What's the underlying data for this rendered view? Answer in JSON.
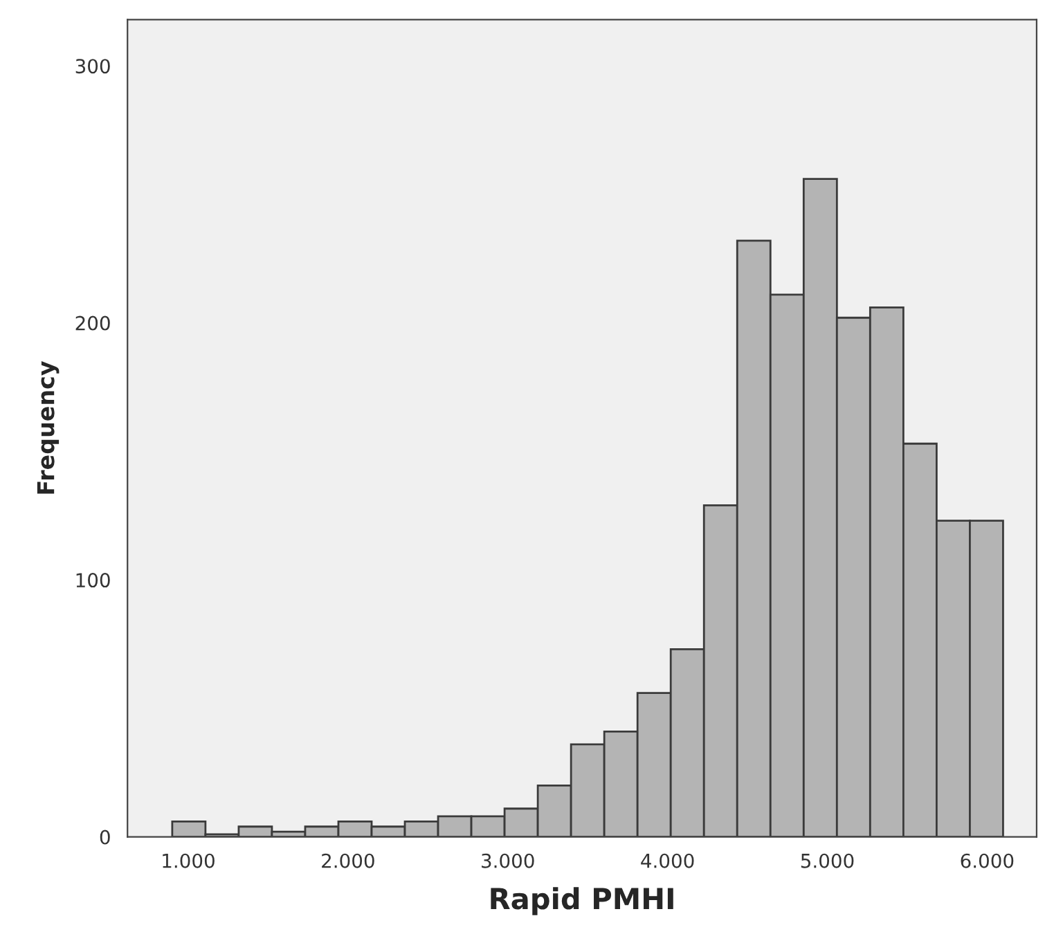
{
  "chart_data": {
    "type": "histogram",
    "xlabel": "Rapid PMHI",
    "ylabel": "Frequency",
    "bins": [
      900,
      1108,
      1316,
      1524,
      1732,
      1940,
      2148,
      2356,
      2564,
      2772,
      2980,
      3188,
      3396,
      3604,
      3812,
      4020,
      4228,
      4436,
      4644,
      4852,
      5060,
      5268,
      5476,
      5684,
      5892,
      6100
    ],
    "values": [
      6,
      1,
      4,
      2,
      4,
      6,
      4,
      6,
      8,
      8,
      11,
      20,
      36,
      41,
      56,
      73,
      129,
      232,
      211,
      256,
      202,
      206,
      153,
      123,
      123
    ],
    "color": "#b4b4b4",
    "xlim": [
      620,
      6310
    ],
    "xticks": [
      {
        "value": 1000,
        "label": "1.000"
      },
      {
        "value": 2000,
        "label": "2.000"
      },
      {
        "value": 3000,
        "label": "3.000"
      },
      {
        "value": 4000,
        "label": "4.000"
      },
      {
        "value": 5000,
        "label": "5.000"
      },
      {
        "value": 6000,
        "label": "6.000"
      }
    ],
    "ylim": [
      0,
      318
    ],
    "yticks": [
      0,
      100,
      200,
      300
    ],
    "grid": false
  }
}
